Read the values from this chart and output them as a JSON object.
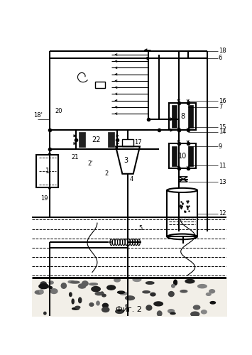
{
  "title": "Фиг. 2",
  "bg_color": "#ffffff",
  "line_color": "#000000",
  "fig_width": 3.55,
  "fig_height": 5.0,
  "dpi": 100
}
